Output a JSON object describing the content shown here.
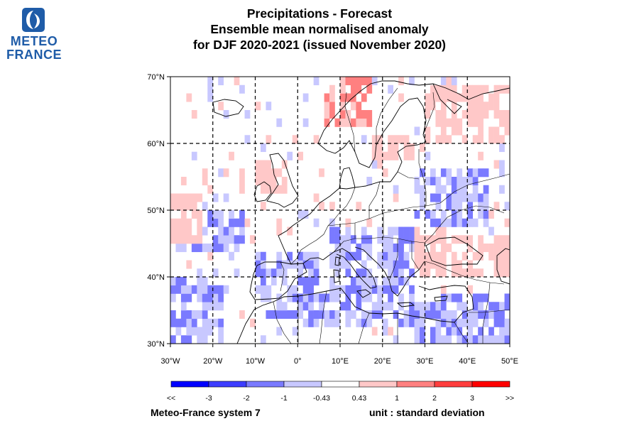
{
  "logo": {
    "line1": "METEO",
    "line2": "FRANCE",
    "brand_color": "#1f5ca8"
  },
  "title": {
    "line1": "Precipitations   -   Forecast",
    "line2": "Ensemble mean normalised anomaly",
    "line3": "for DJF 2020-2021   (issued November 2020)"
  },
  "map": {
    "lon_range": [
      -30,
      50
    ],
    "lat_range": [
      30,
      70
    ],
    "lon_labels": [
      "30°W",
      "20°W",
      "10°W",
      "0°",
      "10°E",
      "20°E",
      "30°E",
      "40°E",
      "50°E"
    ],
    "lat_labels": [
      "30°N",
      "40°N",
      "50°N",
      "60°N",
      "70°N"
    ],
    "grid_lines": "dashed",
    "positive_anomaly_regions": [
      {
        "name": "Norway / Scandinavia",
        "lon": [
          6,
          18
        ],
        "lat": [
          62,
          70
        ],
        "level": 2
      },
      {
        "name": "Northern Russia",
        "lon": [
          30,
          50
        ],
        "lat": [
          60,
          69
        ],
        "level": 1
      },
      {
        "name": "Baltic",
        "lon": [
          18,
          28
        ],
        "lat": [
          57,
          61
        ],
        "level": 1
      },
      {
        "name": "British Isles",
        "lon": [
          -10,
          -2
        ],
        "lat": [
          52,
          57
        ],
        "level": 1
      },
      {
        "name": "North Atlantic west",
        "lon": [
          -30,
          -22
        ],
        "lat": [
          45,
          53
        ],
        "level": 1
      },
      {
        "name": "Turkey / Black Sea",
        "lon": [
          28,
          50
        ],
        "lat": [
          40,
          46
        ],
        "level": 1
      }
    ],
    "negative_anomaly_regions": [
      {
        "name": "Atlantic southwest",
        "lon": [
          -30,
          -18
        ],
        "lat": [
          30,
          40
        ],
        "level": -1
      },
      {
        "name": "Iberia / Western Med",
        "lon": [
          -10,
          5
        ],
        "lat": [
          34,
          44
        ],
        "level": -1
      },
      {
        "name": "Italy / Balkans",
        "lon": [
          8,
          28
        ],
        "lat": [
          37,
          47
        ],
        "level": -1
      },
      {
        "name": "Central Med / North Africa",
        "lon": [
          0,
          28
        ],
        "lat": [
          32,
          38
        ],
        "level": -1
      },
      {
        "name": "Eastern Mediterranean",
        "lon": [
          28,
          50
        ],
        "lat": [
          30,
          38
        ],
        "level": -1
      },
      {
        "name": "Ukraine",
        "lon": [
          28,
          45
        ],
        "lat": [
          47,
          56
        ],
        "level": -1
      },
      {
        "name": "Central Atlantic",
        "lon": [
          -25,
          -12
        ],
        "lat": [
          44,
          50
        ],
        "level": -1
      }
    ]
  },
  "colorbar": {
    "labels": [
      "<<",
      "-3",
      "-2",
      "-1",
      "-0.43",
      "0.43",
      "1",
      "2",
      "3",
      ">>"
    ],
    "colors": [
      "#0000ff",
      "#3d3dff",
      "#7a7aff",
      "#c8c8ff",
      "#ffffff",
      "#ffc8c8",
      "#ff8080",
      "#ff3d3d",
      "#ff0000"
    ]
  },
  "footer": {
    "left": "Meteo-France system 7",
    "right": "unit : standard deviation"
  }
}
